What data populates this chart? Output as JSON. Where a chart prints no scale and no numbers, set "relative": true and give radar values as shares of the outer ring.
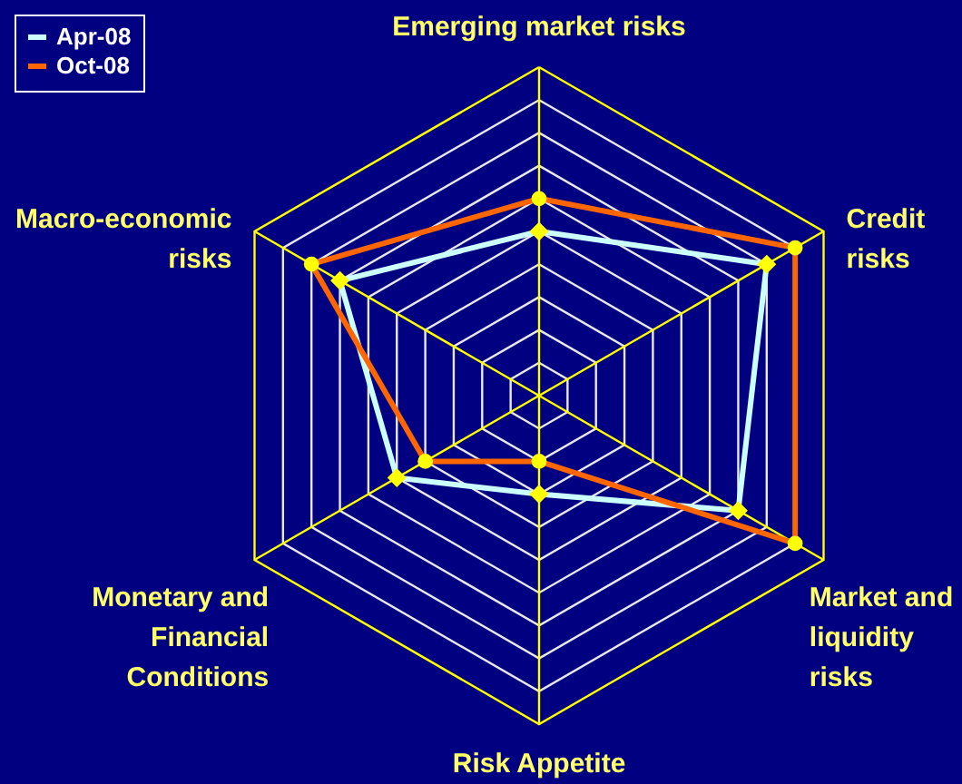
{
  "chart_data": {
    "type": "radar",
    "relative": true,
    "grid": true,
    "legend": "top left",
    "categories": [
      "Emerging market risks",
      "Credit\nrisks",
      "Market and\nliquidity\nrisks",
      "Risk Appetite",
      "Monetary and\nFinancial\nConditions",
      "Macro-economic\nrisks"
    ],
    "series": [
      {
        "name": "Apr-08",
        "color": "#ccffff",
        "marker": "diamond",
        "values": [
          0.5,
          0.8,
          0.7,
          0.3,
          0.5,
          0.7
        ]
      },
      {
        "name": "Oct-08",
        "color": "#ff6600",
        "marker": "circle",
        "values": [
          0.6,
          0.9,
          0.9,
          0.2,
          0.4,
          0.8
        ]
      }
    ]
  }
}
